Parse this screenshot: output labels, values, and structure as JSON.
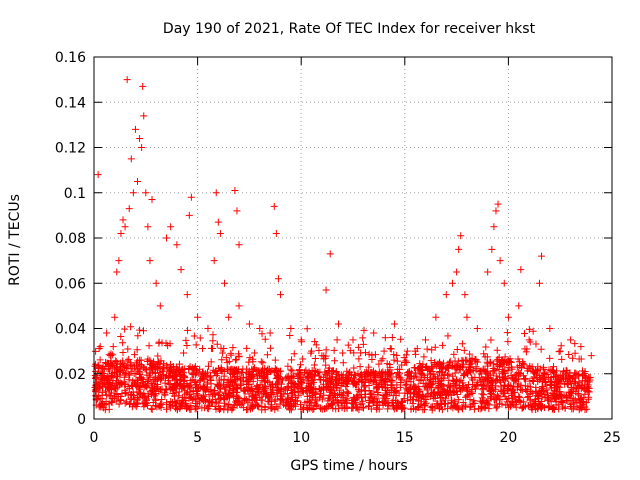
{
  "chart_data": {
    "type": "scatter",
    "title": "Day 190 of 2021, Rate Of TEC Index for receiver hkst",
    "xlabel": "GPS time / hours",
    "ylabel": "ROTI / TECUs",
    "xlim": [
      0,
      25
    ],
    "ylim": [
      0,
      0.16
    ],
    "x_ticks": [
      "0",
      "5",
      "10",
      "15",
      "20",
      "25"
    ],
    "y_ticks": [
      "0",
      "0.02",
      "0.04",
      "0.06",
      "0.08",
      "0.1",
      "0.12",
      "0.14",
      "0.16"
    ],
    "x_tick_values": [
      0,
      5,
      10,
      15,
      20,
      25
    ],
    "y_tick_values": [
      0,
      0.02,
      0.04,
      0.06,
      0.08,
      0.1,
      0.12,
      0.14,
      0.16
    ],
    "grid": true,
    "marker": "+",
    "color": "#ff0000",
    "series": [
      {
        "points": [
          [
            0.1,
            0.015
          ],
          [
            0.2,
            0.108
          ],
          [
            0.3,
            0.032
          ],
          [
            0.5,
            0.022
          ],
          [
            0.8,
            0.028
          ],
          [
            1.0,
            0.045
          ],
          [
            1.1,
            0.065
          ],
          [
            1.2,
            0.07
          ],
          [
            1.3,
            0.082
          ],
          [
            1.4,
            0.088
          ],
          [
            1.5,
            0.085
          ],
          [
            1.6,
            0.15
          ],
          [
            1.7,
            0.093
          ],
          [
            1.8,
            0.115
          ],
          [
            1.9,
            0.1
          ],
          [
            2.0,
            0.128
          ],
          [
            2.1,
            0.105
          ],
          [
            2.2,
            0.124
          ],
          [
            2.3,
            0.12
          ],
          [
            2.35,
            0.147
          ],
          [
            2.4,
            0.134
          ],
          [
            2.5,
            0.1
          ],
          [
            2.6,
            0.085
          ],
          [
            2.7,
            0.07
          ],
          [
            2.8,
            0.097
          ],
          [
            3.0,
            0.06
          ],
          [
            3.2,
            0.05
          ],
          [
            3.5,
            0.08
          ],
          [
            3.7,
            0.085
          ],
          [
            4.0,
            0.077
          ],
          [
            4.2,
            0.066
          ],
          [
            4.5,
            0.055
          ],
          [
            4.6,
            0.09
          ],
          [
            4.7,
            0.098
          ],
          [
            5.0,
            0.045
          ],
          [
            5.5,
            0.04
          ],
          [
            5.8,
            0.07
          ],
          [
            5.9,
            0.1
          ],
          [
            6.0,
            0.087
          ],
          [
            6.1,
            0.082
          ],
          [
            6.3,
            0.06
          ],
          [
            6.5,
            0.045
          ],
          [
            6.8,
            0.101
          ],
          [
            6.9,
            0.092
          ],
          [
            7.0,
            0.077
          ],
          [
            7.0,
            0.05
          ],
          [
            7.5,
            0.042
          ],
          [
            8.0,
            0.04
          ],
          [
            8.5,
            0.038
          ],
          [
            8.7,
            0.094
          ],
          [
            8.8,
            0.082
          ],
          [
            8.9,
            0.062
          ],
          [
            9.0,
            0.055
          ],
          [
            9.5,
            0.04
          ],
          [
            10.0,
            0.035
          ],
          [
            10.5,
            0.03
          ],
          [
            11.0,
            0.028
          ],
          [
            11.2,
            0.057
          ],
          [
            11.4,
            0.073
          ],
          [
            11.8,
            0.042
          ],
          [
            12.5,
            0.035
          ],
          [
            13.0,
            0.033
          ],
          [
            13.5,
            0.038
          ],
          [
            14.0,
            0.03
          ],
          [
            14.5,
            0.042
          ],
          [
            15.0,
            0.025
          ],
          [
            15.5,
            0.03
          ],
          [
            16.0,
            0.035
          ],
          [
            16.5,
            0.045
          ],
          [
            17.0,
            0.055
          ],
          [
            17.3,
            0.06
          ],
          [
            17.5,
            0.065
          ],
          [
            17.6,
            0.075
          ],
          [
            17.7,
            0.081
          ],
          [
            17.9,
            0.055
          ],
          [
            18.0,
            0.045
          ],
          [
            18.5,
            0.04
          ],
          [
            19.0,
            0.065
          ],
          [
            19.2,
            0.075
          ],
          [
            19.3,
            0.085
          ],
          [
            19.4,
            0.092
          ],
          [
            19.5,
            0.095
          ],
          [
            19.6,
            0.07
          ],
          [
            19.8,
            0.06
          ],
          [
            20.0,
            0.045
          ],
          [
            20.5,
            0.05
          ],
          [
            20.6,
            0.066
          ],
          [
            21.0,
            0.035
          ],
          [
            21.5,
            0.06
          ],
          [
            21.6,
            0.072
          ],
          [
            22.0,
            0.04
          ],
          [
            22.5,
            0.03
          ],
          [
            23.0,
            0.035
          ],
          [
            23.5,
            0.032
          ],
          [
            24.0,
            0.028
          ]
        ],
        "baseline": [
          [
            0,
            0.018
          ],
          [
            2,
            0.02
          ],
          [
            4,
            0.017
          ],
          [
            6,
            0.016
          ],
          [
            8,
            0.016
          ],
          [
            10,
            0.016
          ],
          [
            12,
            0.015
          ],
          [
            14,
            0.015
          ],
          [
            16,
            0.018
          ],
          [
            18,
            0.02
          ],
          [
            20,
            0.019
          ],
          [
            22,
            0.016
          ],
          [
            24,
            0.014
          ]
        ]
      }
    ]
  }
}
